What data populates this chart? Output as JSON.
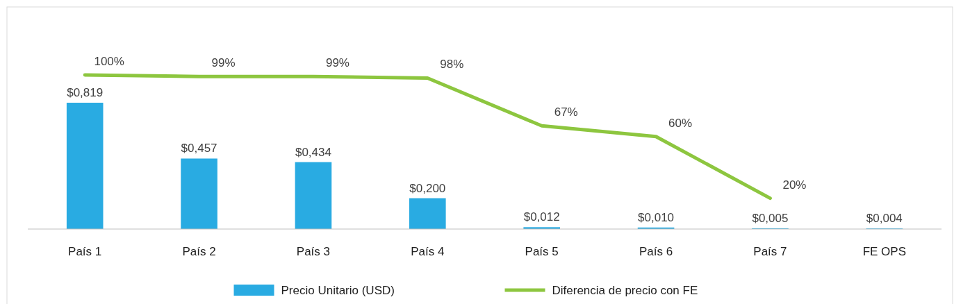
{
  "chart_data": {
    "type": "bar",
    "categories": [
      "País 1",
      "País 2",
      "País 3",
      "País 4",
      "País 5",
      "País 6",
      "País 7",
      "FE OPS"
    ],
    "series": [
      {
        "name": "Precio Unitario (USD)",
        "color": "#29abe2",
        "values": [
          0.819,
          0.457,
          0.434,
          0.2,
          0.012,
          0.01,
          0.005,
          0.004
        ],
        "value_labels": [
          "$0,819",
          "$0,457",
          "$0,434",
          "$0,200",
          "$0,012",
          "$0,010",
          "$0,005",
          "$0,004"
        ]
      },
      {
        "name": "Diferencia de precio con FE",
        "type": "line",
        "axis": "y2",
        "color": "#8dc63f",
        "values": [
          100,
          99,
          99,
          98,
          67,
          60,
          20,
          null
        ],
        "value_labels": [
          "100%",
          "99%",
          "99%",
          "98%",
          "67%",
          "60%",
          "20%",
          null
        ]
      }
    ],
    "legend": "bottom",
    "marker": "none",
    "line_style": "solid"
  }
}
